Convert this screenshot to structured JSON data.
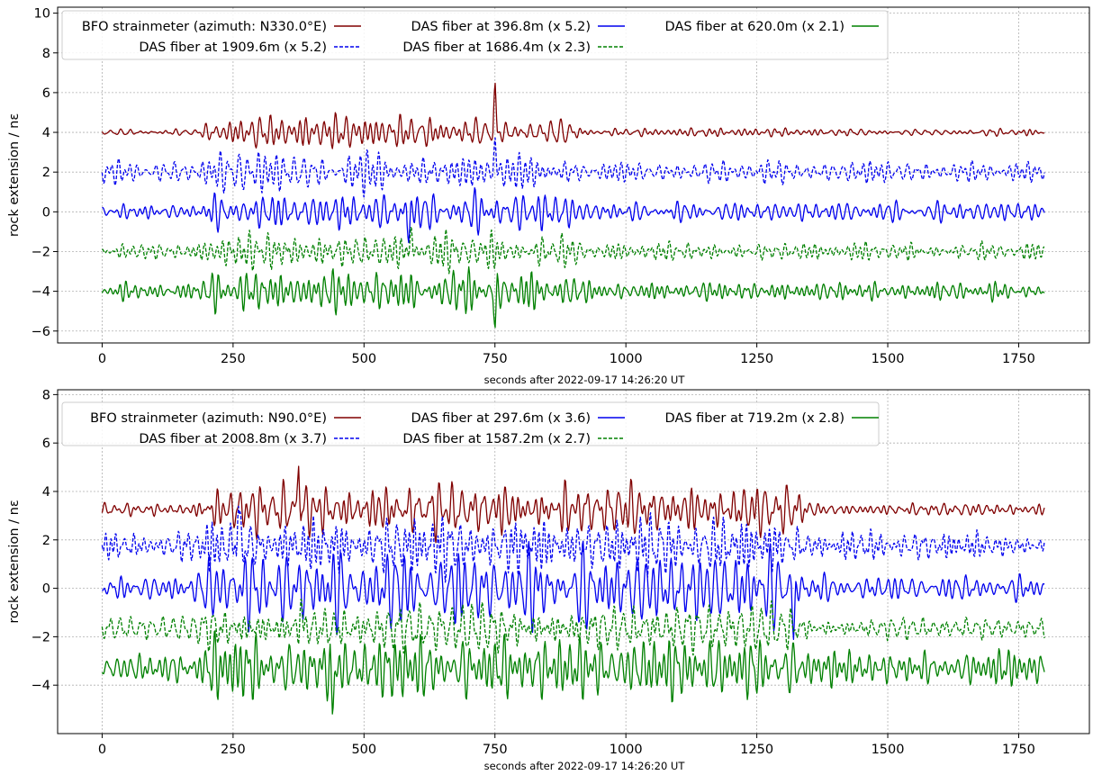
{
  "chart_data": [
    {
      "type": "line",
      "title": "",
      "xlabel": "seconds after 2022-09-17 14:26:20 UT",
      "ylabel": "rock extension / nε",
      "xlim": [
        -85,
        1885
      ],
      "ylim": [
        -6.6,
        10.3
      ],
      "xticks": [
        0,
        250,
        500,
        750,
        1000,
        1250,
        1500,
        1750
      ],
      "yticks": [
        -6,
        -4,
        -2,
        0,
        2,
        4,
        6,
        8,
        10
      ],
      "grid": true,
      "legend_position": "top-left",
      "legend_columns": 3,
      "event_window": [
        200,
        910
      ],
      "series": [
        {
          "name": "BFO strainmeter (azimuth: N330.0°E)",
          "color": "#800000",
          "style": "solid",
          "offset": 4,
          "base_amp": 0.15,
          "event_amp": 0.6,
          "peak_time": 750,
          "peak_value": 6.7
        },
        {
          "name": "DAS fiber at 396.8m (x 5.2)",
          "color": "#0000ee",
          "style": "solid",
          "offset": 0,
          "base_amp": 0.35,
          "event_amp": 0.8,
          "peak_time": 585,
          "peak_value": -1.6
        },
        {
          "name": "DAS fiber at 620.0m (x 2.1)",
          "color": "#008000",
          "style": "solid",
          "offset": -4,
          "base_amp": 0.35,
          "event_amp": 0.8,
          "peak_time": 750,
          "peak_value": -6.0
        },
        {
          "name": "DAS fiber at 1909.6m (x 5.2)",
          "color": "#0000ee",
          "style": "dashed",
          "offset": 2,
          "base_amp": 0.4,
          "event_amp": 0.8,
          "peak_time": 750,
          "peak_value": 3.9
        },
        {
          "name": "DAS fiber at 1686.4m (x 2.3)",
          "color": "#008000",
          "style": "dashed",
          "offset": -2,
          "base_amp": 0.35,
          "event_amp": 0.7,
          "peak_time": 590,
          "peak_value": -0.6
        }
      ]
    },
    {
      "type": "line",
      "title": "",
      "xlabel": "seconds after 2022-09-17 14:26:20 UT",
      "ylabel": "rock extension / nε",
      "xlim": [
        -85,
        1885
      ],
      "ylim": [
        -6.0,
        8.2
      ],
      "xticks": [
        0,
        250,
        500,
        750,
        1000,
        1250,
        1500,
        1750
      ],
      "yticks": [
        -4,
        -2,
        0,
        2,
        4,
        6,
        8
      ],
      "grid": true,
      "legend_position": "top-left",
      "legend_columns": 3,
      "event_window": [
        190,
        1340
      ],
      "series": [
        {
          "name": "BFO strainmeter (azimuth: N90.0°E)",
          "color": "#800000",
          "style": "solid",
          "offset": 3.25,
          "base_amp": 0.2,
          "event_amp": 0.8,
          "peak_time": 375,
          "peak_value": 5.15
        },
        {
          "name": "DAS fiber at 297.6m (x 3.6)",
          "color": "#0000ee",
          "style": "solid",
          "offset": 0,
          "base_amp": 0.4,
          "event_amp": 1.2,
          "peak_time": 1320,
          "peak_value": -2.2
        },
        {
          "name": "DAS fiber at 719.2m (x 2.8)",
          "color": "#008000",
          "style": "solid",
          "offset": -3.3,
          "base_amp": 0.55,
          "event_amp": 1.0,
          "peak_time": 440,
          "peak_value": -5.4
        },
        {
          "name": "DAS fiber at 2008.8m (x 3.7)",
          "color": "#0000ee",
          "style": "dashed",
          "offset": 1.75,
          "base_amp": 0.45,
          "event_amp": 0.9,
          "peak_time": 260,
          "peak_value": 3.6
        },
        {
          "name": "DAS fiber at 1587.2m (x 2.7)",
          "color": "#008000",
          "style": "dashed",
          "offset": -1.65,
          "base_amp": 0.35,
          "event_amp": 0.75,
          "peak_time": 380,
          "peak_value": -0.3
        }
      ]
    }
  ]
}
